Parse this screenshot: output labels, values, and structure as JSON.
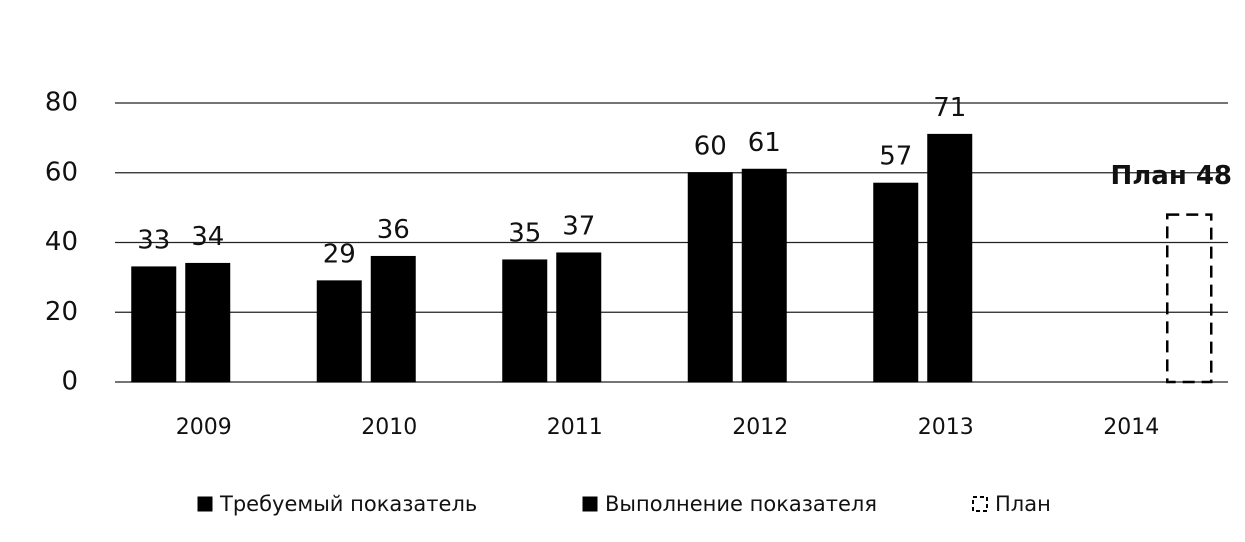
{
  "chart_data": {
    "type": "bar",
    "categories": [
      "2009",
      "2010",
      "2011",
      "2012",
      "2013",
      "2014"
    ],
    "series": [
      {
        "name": "Требуемый показатель",
        "color": "#000000",
        "values": [
          33,
          29,
          35,
          60,
          57,
          null
        ]
      },
      {
        "name": "Выполнение показателя",
        "color": "#000000",
        "values": [
          34,
          36,
          37,
          61,
          71,
          null
        ]
      },
      {
        "name": "План",
        "color": "#000000",
        "dashed": true,
        "values": [
          null,
          null,
          null,
          null,
          null,
          48
        ],
        "value_labels": [
          null,
          null,
          null,
          null,
          null,
          "План 48"
        ]
      }
    ],
    "ylim": [
      0,
      80
    ],
    "yticks": [
      0,
      20,
      40,
      60,
      80
    ],
    "grid": true,
    "legend": "bottom"
  }
}
